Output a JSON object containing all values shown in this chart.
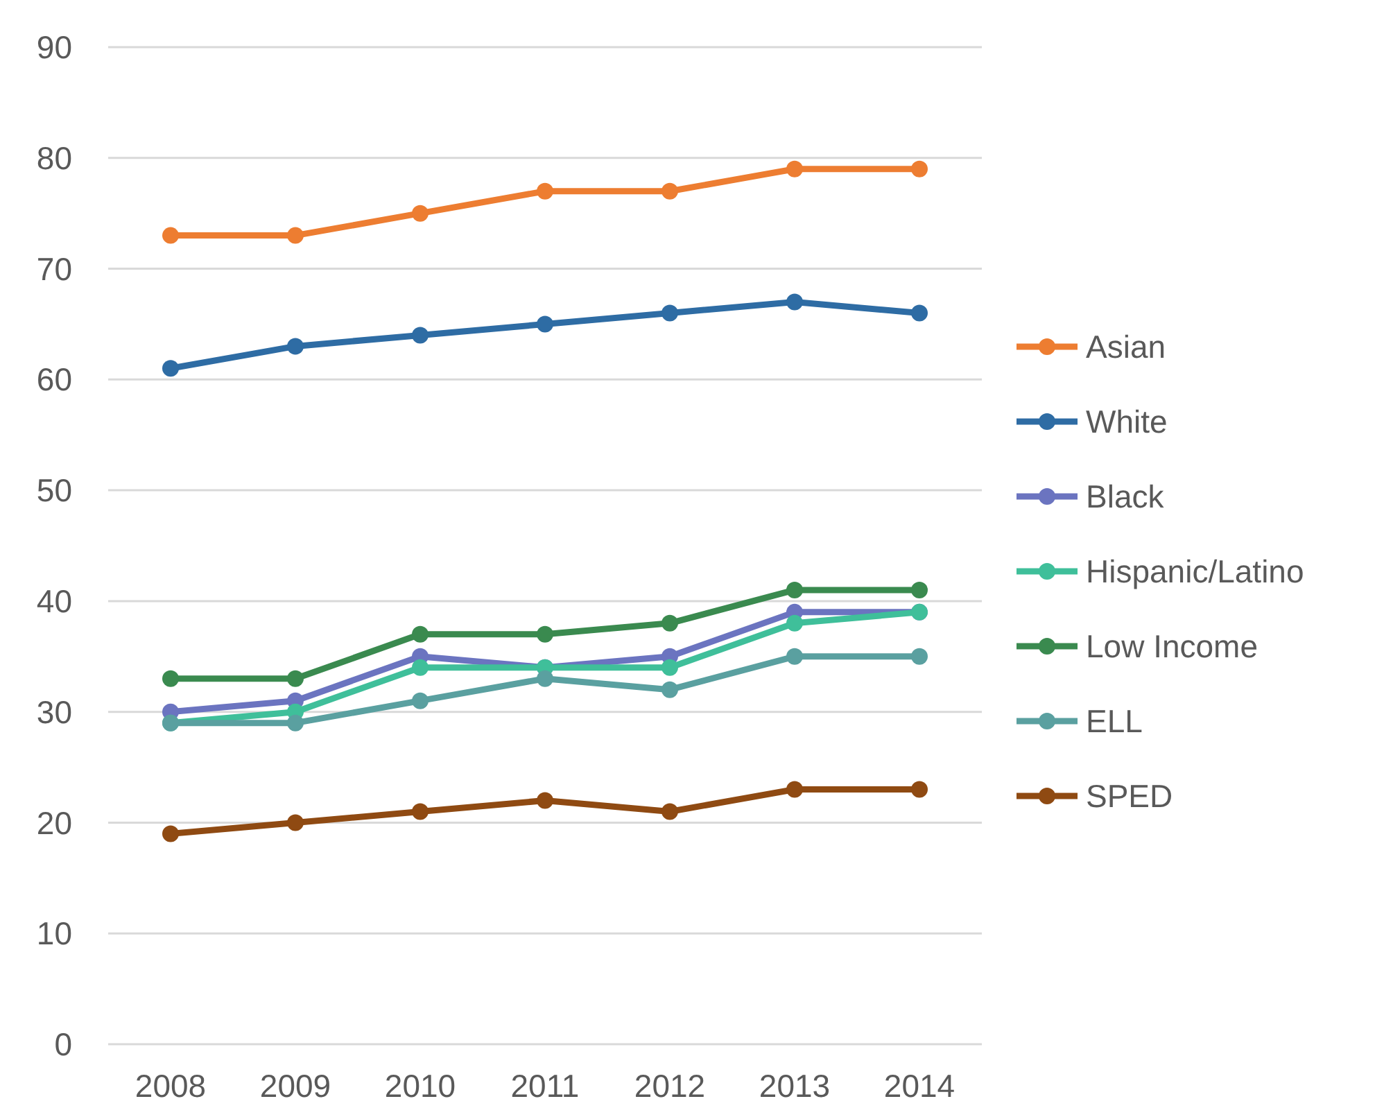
{
  "chart_data": {
    "type": "line",
    "categories": [
      "2008",
      "2009",
      "2010",
      "2011",
      "2012",
      "2013",
      "2014"
    ],
    "ylim": [
      0,
      90
    ],
    "yticks": [
      0,
      10,
      20,
      30,
      40,
      50,
      60,
      70,
      80,
      90
    ],
    "grid": "y",
    "legend": "right",
    "marker": "circle",
    "line_style": "solid",
    "series": [
      {
        "name": "Asian",
        "color": "#ed7d31",
        "values": [
          73,
          73,
          75,
          77,
          77,
          79,
          79
        ]
      },
      {
        "name": "White",
        "color": "#2e6ca4",
        "values": [
          61,
          63,
          64,
          65,
          66,
          67,
          66
        ]
      },
      {
        "name": "Black",
        "color": "#6b74c0",
        "values": [
          30,
          31,
          35,
          34,
          35,
          39,
          39
        ]
      },
      {
        "name": "Hispanic/Latino",
        "color": "#3fbf9a",
        "values": [
          29,
          30,
          34,
          34,
          34,
          38,
          39
        ]
      },
      {
        "name": "Low Income",
        "color": "#3a8a4f",
        "values": [
          33,
          33,
          37,
          37,
          38,
          41,
          41
        ]
      },
      {
        "name": "ELL",
        "color": "#5aa0a0",
        "values": [
          29,
          29,
          31,
          33,
          32,
          35,
          35
        ]
      },
      {
        "name": "SPED",
        "color": "#8f4a12",
        "values": [
          19,
          20,
          21,
          22,
          21,
          23,
          23
        ]
      }
    ]
  }
}
